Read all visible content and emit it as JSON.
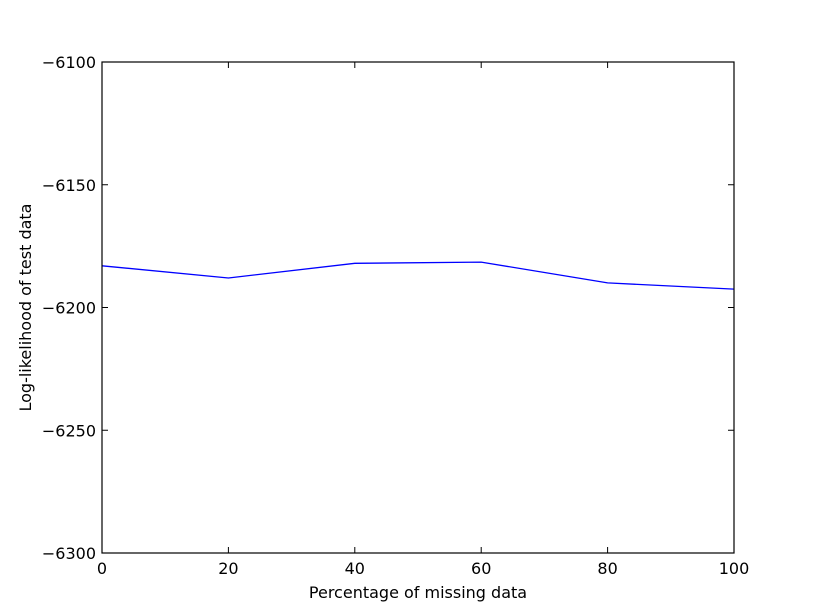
{
  "chart_data": {
    "type": "line",
    "xlabel": "Percentage of missing data",
    "ylabel": "Log-likelihood of test data",
    "xlim": [
      0,
      100
    ],
    "ylim": [
      -6300,
      -6100
    ],
    "x_ticks": [
      0,
      20,
      40,
      60,
      80,
      100
    ],
    "x_tick_labels": [
      "0",
      "20",
      "40",
      "60",
      "80",
      "100"
    ],
    "y_ticks": [
      -6100,
      -6150,
      -6200,
      -6250,
      -6300
    ],
    "y_tick_labels": [
      "−6100",
      "−6150",
      "−6200",
      "−6250",
      "−6300"
    ],
    "grid": false,
    "series": [
      {
        "color": "#0000ff",
        "x": [
          0,
          20,
          40,
          60,
          80,
          100
        ],
        "y": [
          -6183,
          -6188,
          -6182,
          -6181.5,
          -6190,
          -6192.5
        ]
      }
    ]
  }
}
